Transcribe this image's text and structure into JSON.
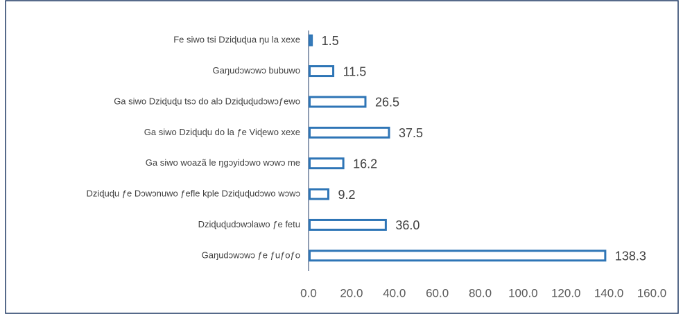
{
  "chart_data": {
    "type": "bar",
    "orientation": "horizontal",
    "categories": [
      "Fe siwo tsi Dziɖuɖua ŋu la xexe",
      "Gaŋudɔwɔwɔ bubuwo",
      "Ga siwo Dziɖuɖu tsɔ do alɔ Dziɖuɖudɔwɔƒewo",
      "Ga siwo Dziɖuɖu do la ƒe Viɖewo xexe",
      "Ga siwo woazã le ŋgɔyidɔwo wɔwɔ me",
      "Dziɖuɖu ƒe Dɔwɔnuwo ƒefle kple Dziɖuɖudɔwo wɔwɔ",
      "Dziɖuɖudɔwɔlawo ƒe fetu",
      "Gaŋudɔwɔwɔ ƒe ƒuƒoƒo"
    ],
    "values": [
      1.5,
      11.5,
      26.5,
      37.5,
      16.2,
      9.2,
      36.0,
      138.3
    ],
    "value_labels": [
      "1.5",
      "11.5",
      "26.5",
      "37.5",
      "16.2",
      "9.2",
      "36.0",
      "138.3"
    ],
    "color": "#2e75b6",
    "xlim": [
      0,
      160
    ],
    "xticks": [
      {
        "value": 0,
        "label": "0.0"
      },
      {
        "value": 20,
        "label": "20.0"
      },
      {
        "value": 40,
        "label": "40.0"
      },
      {
        "value": 60,
        "label": "60.0"
      },
      {
        "value": 80,
        "label": "80.0"
      },
      {
        "value": 100,
        "label": "100.0"
      },
      {
        "value": 120,
        "label": "120.0"
      },
      {
        "value": 140,
        "label": "140.0"
      },
      {
        "value": 160,
        "label": "160.0"
      }
    ],
    "grid": false
  }
}
